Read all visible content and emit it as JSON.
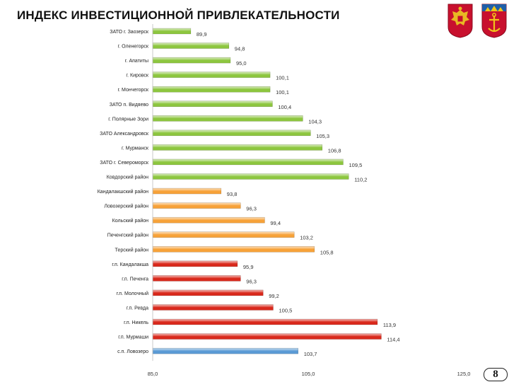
{
  "page": {
    "title": "ИНДЕКС ИНВЕСТИЦИОННОЙ ПРИВЛЕКАТЕЛЬНОСТИ",
    "page_number": "8"
  },
  "emblems": [
    {
      "name": "russia-coat-of-arms-icon",
      "color": "#c8102e"
    },
    {
      "name": "murmansk-oblast-coat-of-arms-icon",
      "color": "#c8102e"
    }
  ],
  "colors": {
    "group_urban": "#8dc63f",
    "group_district": "#f7a239",
    "group_settlement": "#d9291c",
    "group_lovozero": "#5b9bd5"
  },
  "chart_data": {
    "type": "bar",
    "orientation": "horizontal",
    "title": "",
    "xlabel": "",
    "ylabel": "",
    "xlim": [
      85.0,
      125.0
    ],
    "xticks": [
      "85,0",
      "105,0",
      "125,0"
    ],
    "grid": false,
    "legend": "none",
    "categories": [
      "ЗАТО г. Заозерск",
      "г. Оленегорск",
      "г. Апатиты",
      "г. Кировск",
      "г. Мончегорск",
      "ЗАТО п. Видяево",
      "г. Полярные Зори",
      "ЗАТО Александровск",
      "г. Мурманск",
      "ЗАТО г. Североморск",
      "Ковдорский район",
      "Кандалакшский район",
      "Ловозерский район",
      "Кольский район",
      "Печенгский район",
      "Терский район",
      "г.п. Кандалакша",
      "г.п. Печенга",
      "г.п. Молочный",
      "г.п. Ревда",
      "г.п. Никель",
      "г.п. Мурмаши",
      "с.п. Ловозеро"
    ],
    "values": [
      89.9,
      94.8,
      95.0,
      100.1,
      100.1,
      100.4,
      104.3,
      105.3,
      106.8,
      109.5,
      110.2,
      93.8,
      96.3,
      99.4,
      103.2,
      105.8,
      95.9,
      96.3,
      99.2,
      100.5,
      113.9,
      114.4,
      103.7
    ],
    "value_labels": [
      "89,9",
      "94,8",
      "95,0",
      "100,1",
      "100,1",
      "100,4",
      "104,3",
      "105,3",
      "106,8",
      "109,5",
      "110,2",
      "93,8",
      "96,3",
      "99,4",
      "103,2",
      "105,8",
      "95,9",
      "96,3",
      "99,2",
      "100,5",
      "113,9",
      "114,4",
      "103,7"
    ],
    "groups": [
      "urban",
      "urban",
      "urban",
      "urban",
      "urban",
      "urban",
      "urban",
      "urban",
      "urban",
      "urban",
      "urban",
      "district",
      "district",
      "district",
      "district",
      "district",
      "settlement",
      "settlement",
      "settlement",
      "settlement",
      "settlement",
      "settlement",
      "lovozero"
    ]
  }
}
